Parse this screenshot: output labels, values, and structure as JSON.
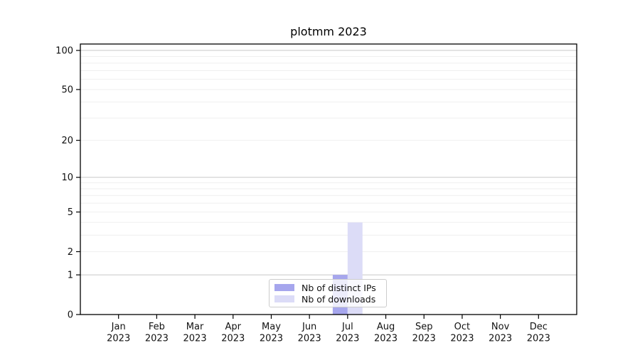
{
  "figure": {
    "title": "plotmm 2023"
  },
  "chart_data": {
    "type": "bar",
    "title": "plotmm 2023",
    "categories": [
      "Jan 2023",
      "Feb 2023",
      "Mar 2023",
      "Apr 2023",
      "May 2023",
      "Jun 2023",
      "Jul 2023",
      "Aug 2023",
      "Sep 2023",
      "Oct 2023",
      "Nov 2023",
      "Dec 2023"
    ],
    "series": [
      {
        "name": "Nb of distinct IPs",
        "values": [
          0,
          0,
          0,
          0,
          0,
          0,
          1,
          0,
          0,
          0,
          0,
          0
        ],
        "color": "#a6a6ed"
      },
      {
        "name": "Nb of downloads",
        "values": [
          0,
          0,
          0,
          0,
          0,
          0,
          4,
          0,
          0,
          0,
          0,
          0
        ],
        "color": "#dcdcf7"
      }
    ],
    "xlabel": "",
    "ylabel": "",
    "yticks": [
      0,
      1,
      2,
      5,
      10,
      20,
      50,
      100
    ],
    "ylim": [
      0,
      112
    ],
    "yscale": "log1p",
    "grid": "horizontal major and minor gridlines",
    "legend_position": "lower center inside plot"
  },
  "colors": {
    "grid_decade": "#c8c8c8",
    "grid_minor": "#efefef",
    "axis": "#000000",
    "tick_text": "#111111",
    "background": "#ffffff",
    "legend_border": "#cccccc"
  }
}
